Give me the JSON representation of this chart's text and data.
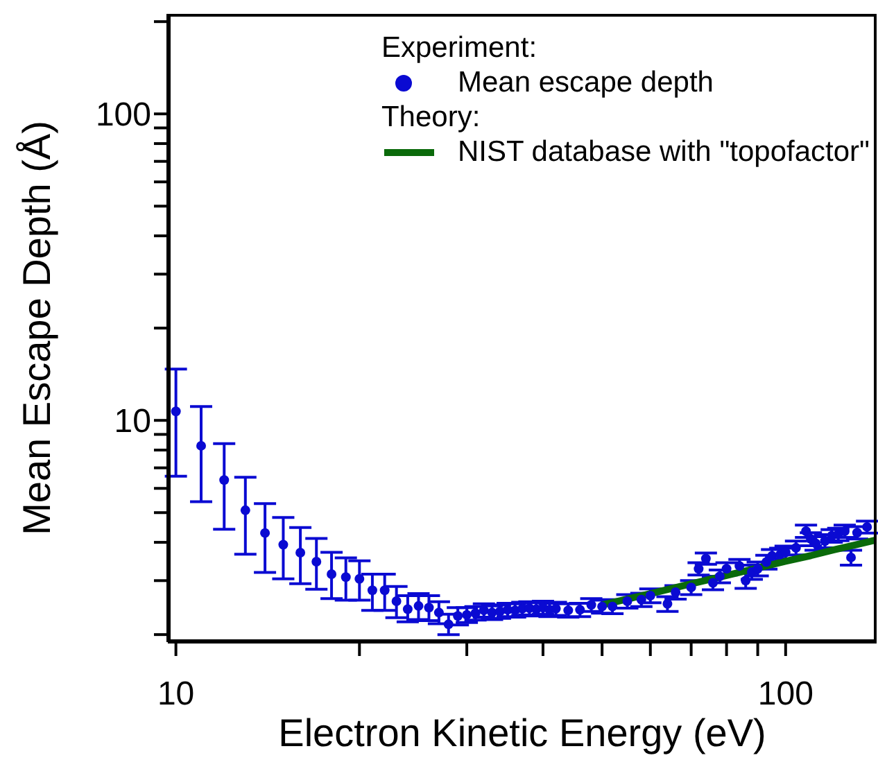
{
  "chart_data": {
    "type": "scatter",
    "xlabel": "Electron Kinetic Energy (eV)",
    "ylabel": "Mean Escape Depth (Å)",
    "log": "xy",
    "legend": "top right",
    "marker": "circle",
    "annotations": [
      "Experiment:",
      "Theory:"
    ],
    "xlim": [
      9.7,
      141
    ],
    "ylim": [
      1.89,
      212
    ],
    "xticks": [
      10,
      {
        "value": 20,
        "label": null
      },
      {
        "value": 30,
        "label": null
      },
      {
        "value": 40,
        "label": null
      },
      {
        "value": 50,
        "label": null
      },
      {
        "value": 60,
        "label": null
      },
      {
        "value": 70,
        "label": null
      },
      {
        "value": 80,
        "label": null
      },
      {
        "value": 90,
        "label": null
      },
      100
    ],
    "yticks": [
      {
        "value": 2,
        "label": null
      },
      {
        "value": 3,
        "label": null
      },
      {
        "value": 4,
        "label": null
      },
      {
        "value": 5,
        "label": null
      },
      {
        "value": 6,
        "label": null
      },
      {
        "value": 7,
        "label": null
      },
      {
        "value": 8,
        "label": null
      },
      {
        "value": 9,
        "label": null
      },
      10,
      {
        "value": 20,
        "label": null
      },
      {
        "value": 30,
        "label": null
      },
      {
        "value": 40,
        "label": null
      },
      {
        "value": 50,
        "label": null
      },
      {
        "value": 60,
        "label": null
      },
      {
        "value": 70,
        "label": null
      },
      {
        "value": 80,
        "label": null
      },
      {
        "value": 90,
        "label": null
      },
      100,
      {
        "value": 200,
        "label": null
      }
    ],
    "series": [
      {
        "name": "Mean escape depth",
        "color": "#0a0ad2",
        "x": [
          10,
          11,
          12,
          13,
          14,
          15,
          16,
          17,
          18,
          19,
          20,
          21,
          22,
          23,
          24,
          25,
          26,
          27,
          28,
          29,
          30,
          31,
          32,
          33,
          34,
          35,
          36,
          37,
          38,
          39,
          40,
          41,
          42,
          44,
          46,
          48,
          50,
          52,
          55,
          58,
          60,
          64,
          66,
          70,
          72,
          74,
          76,
          78,
          80,
          84,
          86,
          88,
          90,
          93,
          95,
          98,
          100,
          104,
          108,
          110,
          112,
          116,
          119,
          122,
          125,
          128,
          131,
          136
        ],
        "values": [
          10.7,
          8.26,
          6.39,
          5.09,
          4.29,
          3.93,
          3.7,
          3.46,
          3.15,
          3.08,
          3.04,
          2.79,
          2.79,
          2.57,
          2.42,
          2.48,
          2.45,
          2.36,
          2.16,
          2.3,
          2.32,
          2.35,
          2.4,
          2.36,
          2.38,
          2.41,
          2.4,
          2.43,
          2.44,
          2.42,
          2.45,
          2.41,
          2.43,
          2.4,
          2.41,
          2.5,
          2.47,
          2.47,
          2.57,
          2.6,
          2.68,
          2.52,
          2.75,
          2.85,
          3.28,
          3.54,
          2.95,
          3.1,
          3.28,
          3.35,
          3.0,
          3.2,
          3.28,
          3.45,
          3.61,
          3.65,
          3.71,
          3.84,
          4.35,
          4.1,
          3.97,
          4.04,
          4.2,
          4.25,
          4.35,
          3.57,
          4.3,
          4.49
        ],
        "errors": [
          [
            6.57,
            14.7
          ],
          [
            5.43,
            11.1
          ],
          [
            4.41,
            8.4
          ],
          [
            3.66,
            6.52
          ],
          [
            3.19,
            5.35
          ],
          [
            3.04,
            4.82
          ],
          [
            2.93,
            4.47
          ],
          [
            2.81,
            4.12
          ],
          [
            2.62,
            3.71
          ],
          [
            2.59,
            3.56
          ],
          [
            2.59,
            3.48
          ],
          [
            2.4,
            3.15
          ],
          [
            2.4,
            3.15
          ],
          [
            2.27,
            2.87
          ],
          [
            2.2,
            2.68
          ],
          [
            2.24,
            2.72
          ],
          [
            2.22,
            2.68
          ],
          [
            2.17,
            2.56
          ],
          [
            2.0,
            2.33
          ],
          0.15,
          0.13,
          0.12,
          0.12,
          0.12,
          0.12,
          0.12,
          0.12,
          0.12,
          0.12,
          0.12,
          0.12,
          0.12,
          0.12,
          0.12,
          0.12,
          0.12,
          0.12,
          0.13,
          0.13,
          0.13,
          0.14,
          0.14,
          0.14,
          0.15,
          0.15,
          0.15,
          0.15,
          0.15,
          0.15,
          0.17,
          0.17,
          0.17,
          0.17,
          0.18,
          0.18,
          0.18,
          0.18,
          0.2,
          0.2,
          0.2,
          0.2,
          0.2,
          0.2,
          0.2,
          0.2,
          0.2,
          0.2,
          0.2
        ]
      },
      {
        "name": "NIST database with \"topofactor\"",
        "type": "line",
        "marker": "none",
        "color": "#0a6a0a",
        "x": [
          50,
          60,
          70,
          80,
          90,
          100,
          110,
          120,
          130,
          140
        ],
        "values": [
          2.5,
          2.72,
          2.93,
          3.12,
          3.3,
          3.47,
          3.62,
          3.78,
          3.92,
          4.06
        ]
      }
    ]
  }
}
